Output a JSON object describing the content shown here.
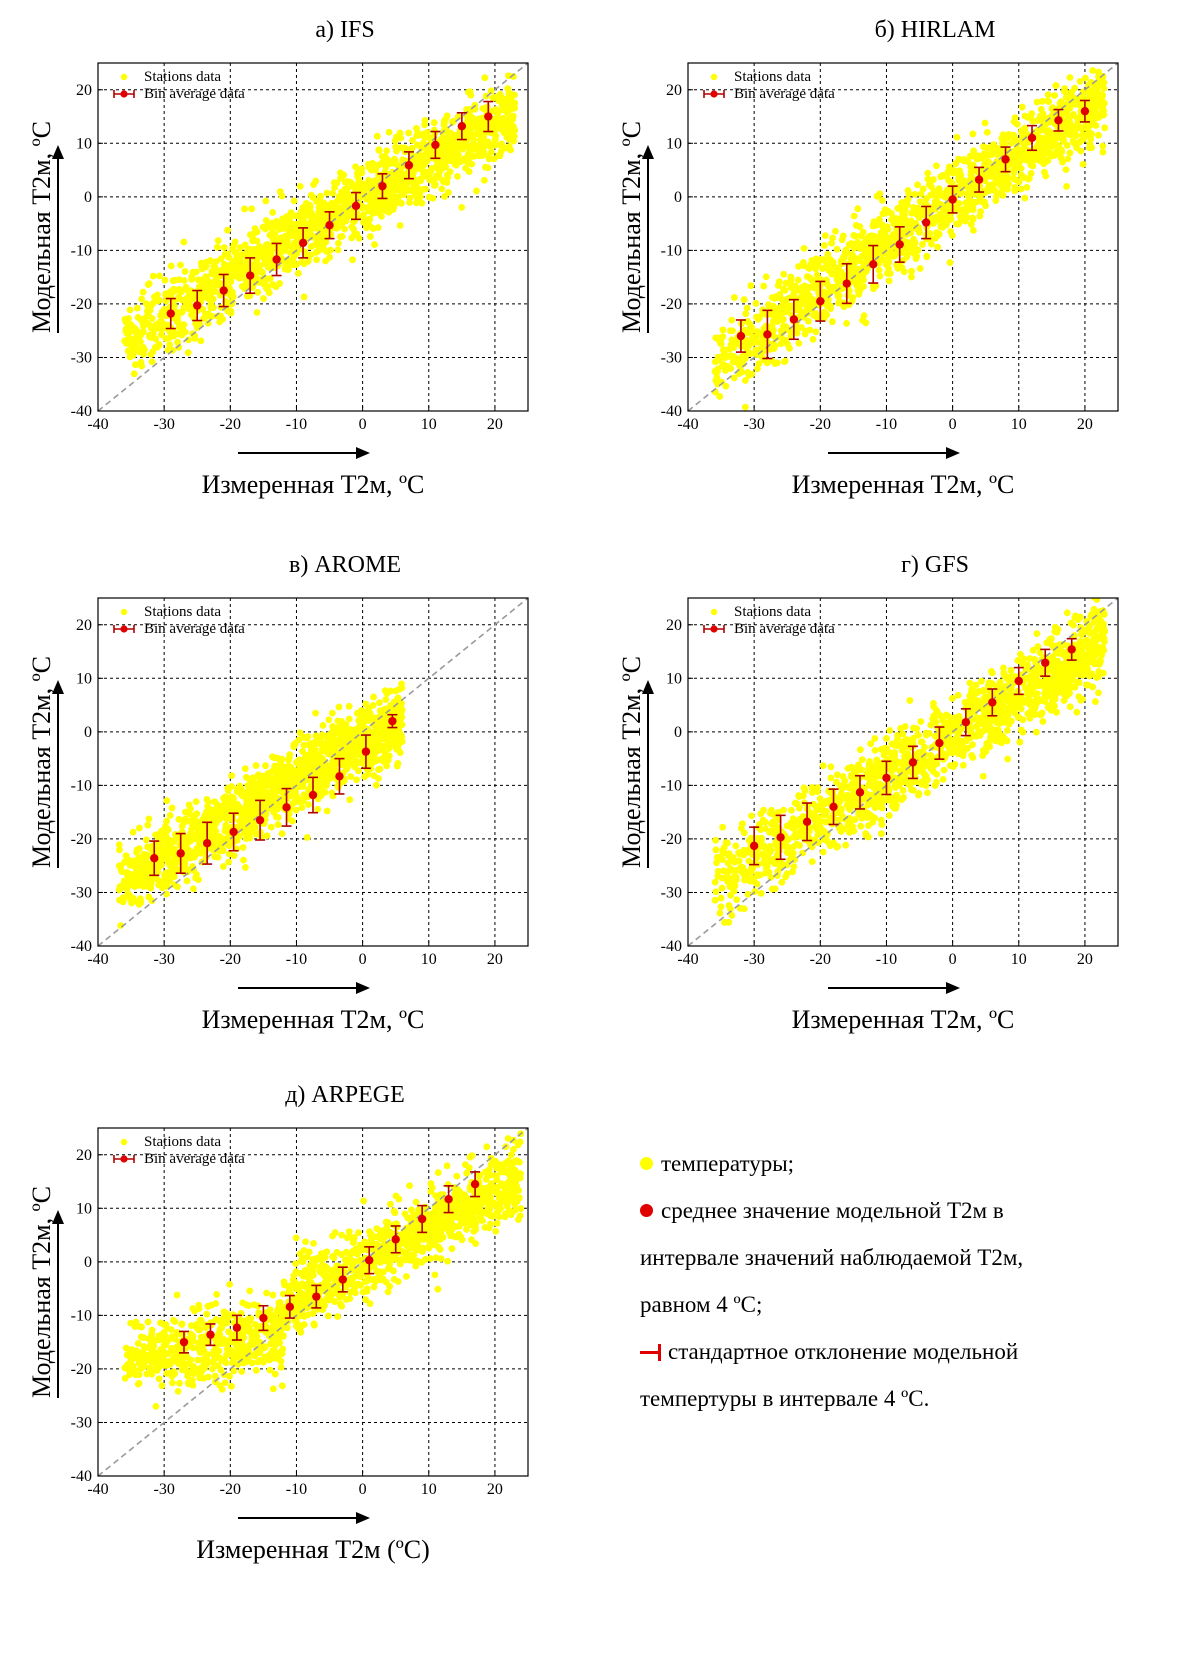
{
  "chart_data": [
    {
      "type": "scatter",
      "title": "а) IFS",
      "xlabel": "Измеренная Т2м, ºC",
      "ylabel": "Модельная Т2м, ºC",
      "xlim": [
        -40,
        25
      ],
      "ylim": [
        -40,
        25
      ],
      "xticks": [
        -40,
        -30,
        -20,
        -10,
        0,
        10,
        20
      ],
      "yticks": [
        -40,
        -30,
        -20,
        -10,
        0,
        10,
        20
      ],
      "grid": true,
      "legend_position": "top-left",
      "diagonal": true,
      "scatter_cloud": {
        "x_min": -36,
        "x_max": 23,
        "slope": 0.72,
        "intercept": -0.5,
        "spread": 3.5
      },
      "series": [
        {
          "name": "Stations data",
          "color": "#ffff00"
        },
        {
          "name": "Bin average data",
          "color": "#e00000",
          "x": [
            -29,
            -25,
            -21,
            -17,
            -13,
            -9,
            -5,
            -1,
            3,
            7,
            11,
            15,
            19
          ],
          "y": [
            -21.8,
            -20.3,
            -17.5,
            -14.7,
            -11.7,
            -8.6,
            -5.3,
            -1.7,
            2.0,
            5.9,
            9.7,
            13.2,
            15.0
          ],
          "err": [
            2.8,
            2.8,
            3.0,
            3.3,
            3.0,
            2.8,
            2.5,
            2.5,
            2.3,
            2.5,
            2.5,
            2.5,
            2.8
          ]
        }
      ]
    },
    {
      "type": "scatter",
      "title": "б) HIRLAM",
      "xlabel": "Измеренная Т2м, ºC",
      "ylabel": "Модельная Т2м, ºC",
      "xlim": [
        -40,
        25
      ],
      "ylim": [
        -40,
        25
      ],
      "xticks": [
        -40,
        -30,
        -20,
        -10,
        0,
        10,
        20
      ],
      "yticks": [
        -40,
        -30,
        -20,
        -10,
        0,
        10,
        20
      ],
      "grid": true,
      "legend_position": "top-left",
      "diagonal": true,
      "scatter_cloud": {
        "x_min": -36,
        "x_max": 23,
        "slope": 0.84,
        "intercept": -0.5,
        "spread": 3.8
      },
      "series": [
        {
          "name": "Stations data",
          "color": "#ffff00"
        },
        {
          "name": "Bin average data",
          "color": "#e00000",
          "x": [
            -32,
            -28,
            -24,
            -20,
            -16,
            -12,
            -8,
            -4,
            0,
            4,
            8,
            12,
            16,
            20
          ],
          "y": [
            -26.0,
            -25.7,
            -22.9,
            -19.5,
            -16.2,
            -12.6,
            -8.9,
            -4.8,
            -0.5,
            3.2,
            7.0,
            11.0,
            14.3,
            16.0
          ],
          "err": [
            3.0,
            4.5,
            3.7,
            3.7,
            3.7,
            3.5,
            3.3,
            3.0,
            2.5,
            2.3,
            2.3,
            2.3,
            2.0,
            2.0
          ]
        }
      ]
    },
    {
      "type": "scatter",
      "title": "в) AROME",
      "xlabel": "Измеренная Т2м, ºC",
      "ylabel": "Модельная Т2м, ºC",
      "xlim": [
        -40,
        25
      ],
      "ylim": [
        -40,
        25
      ],
      "xticks": [
        -40,
        -30,
        -20,
        -10,
        0,
        10,
        20
      ],
      "yticks": [
        -40,
        -30,
        -20,
        -10,
        0,
        10,
        20
      ],
      "grid": true,
      "legend_position": "top-left",
      "diagonal": true,
      "scatter_cloud": {
        "x_min": -37,
        "x_max": 6,
        "slope": 0.7,
        "intercept": -2.0,
        "spread": 3.3
      },
      "series": [
        {
          "name": "Stations data",
          "color": "#ffff00"
        },
        {
          "name": "Bin average data",
          "color": "#e00000",
          "x": [
            -31.5,
            -27.5,
            -23.5,
            -19.5,
            -15.5,
            -11.5,
            -7.5,
            -3.5,
            0.5,
            4.5
          ],
          "y": [
            -23.6,
            -22.7,
            -20.8,
            -18.7,
            -16.5,
            -14.1,
            -11.8,
            -8.3,
            -3.7,
            2.0
          ],
          "err": [
            3.2,
            3.7,
            3.9,
            3.5,
            3.7,
            3.5,
            3.3,
            3.3,
            3.1,
            1.2
          ]
        }
      ]
    },
    {
      "type": "scatter",
      "title": "г) GFS",
      "xlabel": "Измеренная Т2м, ºC",
      "ylabel": "Модельная Т2м, ºC",
      "xlim": [
        -40,
        25
      ],
      "ylim": [
        -40,
        25
      ],
      "xticks": [
        -40,
        -30,
        -20,
        -10,
        0,
        10,
        20
      ],
      "yticks": [
        -40,
        -30,
        -20,
        -10,
        0,
        10,
        20
      ],
      "grid": true,
      "legend_position": "top-left",
      "diagonal": true,
      "scatter_cloud": {
        "x_min": -36,
        "x_max": 23,
        "slope": 0.76,
        "intercept": -1.0,
        "spread": 3.6
      },
      "series": [
        {
          "name": "Stations data",
          "color": "#ffff00"
        },
        {
          "name": "Bin average data",
          "color": "#e00000",
          "x": [
            -30,
            -26,
            -22,
            -18,
            -14,
            -10,
            -6,
            -2,
            2,
            6,
            10,
            14,
            18
          ],
          "y": [
            -21.3,
            -19.7,
            -16.8,
            -14.0,
            -11.3,
            -8.6,
            -5.7,
            -2.1,
            1.8,
            5.5,
            9.5,
            12.9,
            15.4
          ],
          "err": [
            3.5,
            4.1,
            3.5,
            3.3,
            3.1,
            3.1,
            3.0,
            3.0,
            2.5,
            2.5,
            2.5,
            2.5,
            2.0
          ]
        }
      ]
    },
    {
      "type": "scatter",
      "title": "д) ARPEGE",
      "xlabel": "Измеренная Т2м (ºC)",
      "ylabel": "Модельная Т2м, ºC",
      "xlim": [
        -40,
        25
      ],
      "ylim": [
        -40,
        25
      ],
      "xticks": [
        -40,
        -30,
        -20,
        -10,
        0,
        10,
        20
      ],
      "yticks": [
        -40,
        -30,
        -20,
        -10,
        0,
        10,
        20
      ],
      "grid": true,
      "legend_position": "top-left",
      "diagonal": true,
      "scatter_cloud": {
        "x_min": -36,
        "x_max": 24,
        "slope": 0.66,
        "intercept": 0.0,
        "spread": 3.4,
        "flatten_below": -12,
        "flat_level": -13.5
      },
      "series": [
        {
          "name": "Stations data",
          "color": "#ffff00"
        },
        {
          "name": "Bin average data",
          "color": "#e00000",
          "x": [
            -27,
            -23,
            -19,
            -15,
            -11,
            -7,
            -3,
            1,
            5,
            9,
            13,
            17
          ],
          "y": [
            -15.0,
            -13.6,
            -12.3,
            -10.5,
            -8.4,
            -6.5,
            -3.3,
            0.3,
            4.2,
            8.0,
            11.7,
            14.5
          ],
          "err": [
            2.0,
            2.0,
            2.3,
            2.3,
            2.1,
            2.1,
            2.3,
            2.5,
            2.5,
            2.5,
            2.5,
            2.3
          ]
        }
      ]
    }
  ],
  "legend_note": {
    "yellow_text": "температуры;",
    "red_text_line1": "среднее значение модельной Т2м в",
    "red_text_line2": "интервале значений наблюдаемой Т2м,",
    "red_text_line3": "равном 4 ºC;",
    "err_text_line1": "стандартное отклонение модельной",
    "err_text_line2": "темпертуры в интервале 4 ºC."
  }
}
